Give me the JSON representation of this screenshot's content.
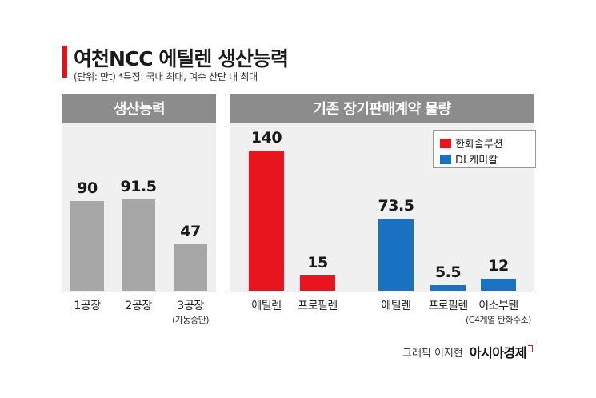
{
  "header": {
    "title": "여천NCC 에틸렌 생산능력",
    "subtitle": "(단위: 만t) *특징: 국내 최대, 여수 산단 내 최대",
    "accent_color": "#e0141e"
  },
  "chart_data": [
    {
      "type": "bar",
      "title": "생산능력",
      "categories": [
        "1공장",
        "2공장",
        "3공장"
      ],
      "notes": [
        "",
        "",
        "(가동중단)"
      ],
      "values": [
        90,
        91.5,
        47
      ],
      "data_labels": [
        "90",
        "91.5",
        "47"
      ],
      "color": "#a6a6a6",
      "unit": "만t"
    },
    {
      "type": "bar",
      "title": "기존 장기판매계약 물량",
      "legend_position": "top-right",
      "series": [
        {
          "name": "한화솔루션",
          "color": "#e8141e",
          "categories": [
            "에틸렌",
            "프로필렌"
          ],
          "values": [
            140,
            15
          ],
          "data_labels": [
            "140",
            "15"
          ]
        },
        {
          "name": "DL케미칼",
          "color": "#1a73c2",
          "categories": [
            "에틸렌",
            "프로필렌",
            "이소부텐"
          ],
          "notes": [
            "",
            "",
            "(C4계열 탄화수소)"
          ],
          "values": [
            73.5,
            5.5,
            12
          ],
          "data_labels": [
            "73.5",
            "5.5",
            "12"
          ]
        }
      ],
      "unit": "만t"
    }
  ],
  "footer": {
    "credit": "그래픽 이지현",
    "brand": "아시아경제"
  }
}
